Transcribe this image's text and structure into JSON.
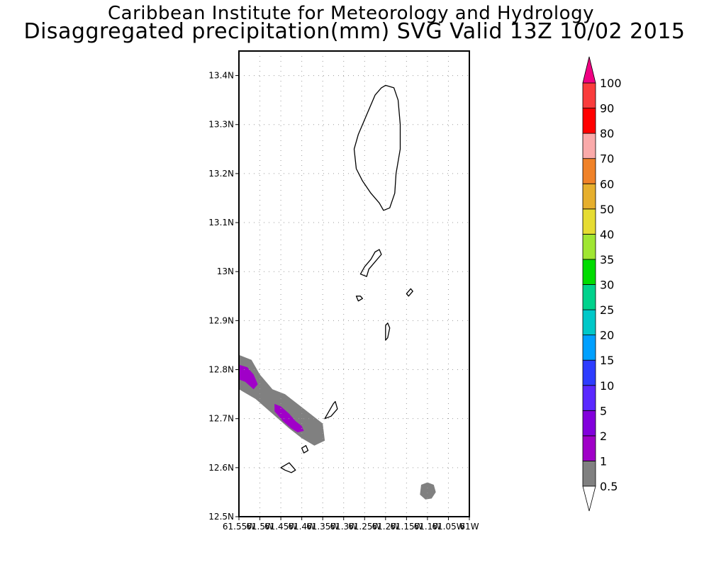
{
  "title": {
    "line1": "Caribbean Institute for Meteorology and Hydrology",
    "line2": "Disaggregated precipitation(mm) SVG Valid 13Z 10/02 2015"
  },
  "map": {
    "lon_range": [
      -61.55,
      -61.0
    ],
    "lat_range": [
      12.5,
      13.45
    ],
    "lat_ticks": [
      {
        "v": 13.4,
        "label": "13.4N"
      },
      {
        "v": 13.3,
        "label": "13.3N"
      },
      {
        "v": 13.2,
        "label": "13.2N"
      },
      {
        "v": 13.1,
        "label": "13.1N"
      },
      {
        "v": 13.0,
        "label": "13N"
      },
      {
        "v": 12.9,
        "label": "12.9N"
      },
      {
        "v": 12.8,
        "label": "12.8N"
      },
      {
        "v": 12.7,
        "label": "12.7N"
      },
      {
        "v": 12.6,
        "label": "12.6N"
      },
      {
        "v": 12.5,
        "label": "12.5N"
      }
    ],
    "lon_ticks": [
      {
        "v": -61.55,
        "label": "61.55W"
      },
      {
        "v": -61.5,
        "label": "61.5W"
      },
      {
        "v": -61.45,
        "label": "61.45W"
      },
      {
        "v": -61.4,
        "label": "61.4W"
      },
      {
        "v": -61.35,
        "label": "61.35W"
      },
      {
        "v": -61.3,
        "label": "61.3W"
      },
      {
        "v": -61.25,
        "label": "61.25W"
      },
      {
        "v": -61.2,
        "label": "61.2W"
      },
      {
        "v": -61.15,
        "label": "61.15W"
      },
      {
        "v": -61.1,
        "label": "61.1W"
      },
      {
        "v": -61.05,
        "label": "61.05W"
      },
      {
        "v": -61.0,
        "label": "61W"
      }
    ],
    "grid": "dotted",
    "precip_areas": [
      {
        "level": "0.5-1",
        "color": "#808080",
        "points": [
          [
            -61.55,
            12.83
          ],
          [
            -61.52,
            12.82
          ],
          [
            -61.5,
            12.79
          ],
          [
            -61.47,
            12.76
          ],
          [
            -61.44,
            12.75
          ],
          [
            -61.41,
            12.73
          ],
          [
            -61.38,
            12.71
          ],
          [
            -61.35,
            12.69
          ],
          [
            -61.345,
            12.655
          ],
          [
            -61.37,
            12.645
          ],
          [
            -61.4,
            12.66
          ],
          [
            -61.43,
            12.68
          ],
          [
            -61.47,
            12.71
          ],
          [
            -61.51,
            12.74
          ],
          [
            -61.55,
            12.76
          ]
        ]
      },
      {
        "level": "0.5-1",
        "color": "#808080",
        "points": [
          [
            -61.115,
            12.565
          ],
          [
            -61.1,
            12.57
          ],
          [
            -61.085,
            12.565
          ],
          [
            -61.08,
            12.55
          ],
          [
            -61.09,
            12.537
          ],
          [
            -61.105,
            12.535
          ],
          [
            -61.118,
            12.545
          ]
        ]
      },
      {
        "level": "1-2",
        "color": "#a000c8",
        "points": [
          [
            -61.55,
            12.81
          ],
          [
            -61.53,
            12.805
          ],
          [
            -61.515,
            12.79
          ],
          [
            -61.505,
            12.77
          ],
          [
            -61.515,
            12.76
          ],
          [
            -61.535,
            12.775
          ],
          [
            -61.55,
            12.78
          ]
        ]
      },
      {
        "level": "1-2",
        "color": "#a000c8",
        "points": [
          [
            -61.465,
            12.73
          ],
          [
            -61.45,
            12.725
          ],
          [
            -61.43,
            12.71
          ],
          [
            -61.415,
            12.695
          ],
          [
            -61.4,
            12.685
          ],
          [
            -61.395,
            12.675
          ],
          [
            -61.41,
            12.672
          ],
          [
            -61.425,
            12.68
          ],
          [
            -61.445,
            12.695
          ],
          [
            -61.465,
            12.715
          ]
        ]
      }
    ],
    "land_areas": [
      {
        "name": "st-vincent",
        "points": [
          [
            -61.2,
            13.38
          ],
          [
            -61.18,
            13.375
          ],
          [
            -61.17,
            13.35
          ],
          [
            -61.165,
            13.3
          ],
          [
            -61.165,
            13.25
          ],
          [
            -61.175,
            13.2
          ],
          [
            -61.178,
            13.16
          ],
          [
            -61.19,
            13.13
          ],
          [
            -61.205,
            13.125
          ],
          [
            -61.215,
            13.14
          ],
          [
            -61.235,
            13.16
          ],
          [
            -61.255,
            13.185
          ],
          [
            -61.27,
            13.21
          ],
          [
            -61.275,
            13.25
          ],
          [
            -61.265,
            13.28
          ],
          [
            -61.245,
            13.32
          ],
          [
            -61.225,
            13.36
          ],
          [
            -61.21,
            13.375
          ]
        ]
      },
      {
        "name": "bequia",
        "points": [
          [
            -61.215,
            13.045
          ],
          [
            -61.21,
            13.035
          ],
          [
            -61.225,
            13.02
          ],
          [
            -61.24,
            13.005
          ],
          [
            -61.245,
            12.99
          ],
          [
            -61.26,
            12.995
          ],
          [
            -61.25,
            13.01
          ],
          [
            -61.235,
            13.025
          ],
          [
            -61.225,
            13.04
          ]
        ]
      },
      {
        "name": "mustique",
        "points": [
          [
            -61.195,
            12.895
          ],
          [
            -61.19,
            12.885
          ],
          [
            -61.195,
            12.865
          ],
          [
            -61.2,
            12.86
          ],
          [
            -61.2,
            12.875
          ],
          [
            -61.2,
            12.89
          ]
        ]
      },
      {
        "name": "carriacou",
        "points": [
          [
            -61.42,
            12.6
          ],
          [
            -61.415,
            12.595
          ],
          [
            -61.425,
            12.59
          ],
          [
            -61.44,
            12.595
          ],
          [
            -61.45,
            12.6
          ],
          [
            -61.44,
            12.605
          ],
          [
            -61.43,
            12.61
          ]
        ]
      },
      {
        "name": "union",
        "points": [
          [
            -61.32,
            12.735
          ],
          [
            -61.315,
            12.72
          ],
          [
            -61.33,
            12.705
          ],
          [
            -61.345,
            12.7
          ],
          [
            -61.335,
            12.715
          ],
          [
            -61.325,
            12.73
          ]
        ]
      },
      {
        "name": "canouan",
        "points": [
          [
            -61.26,
            12.95
          ],
          [
            -61.255,
            12.945
          ],
          [
            -61.265,
            12.94
          ],
          [
            -61.27,
            12.95
          ]
        ]
      },
      {
        "name": "baliceaux",
        "points": [
          [
            -61.14,
            12.965
          ],
          [
            -61.135,
            12.96
          ],
          [
            -61.145,
            12.95
          ],
          [
            -61.15,
            12.955
          ]
        ]
      },
      {
        "name": "mayreau",
        "points": [
          [
            -61.39,
            12.645
          ],
          [
            -61.385,
            12.635
          ],
          [
            -61.395,
            12.63
          ],
          [
            -61.4,
            12.64
          ]
        ]
      }
    ]
  },
  "colorbar": {
    "stops": [
      {
        "label": "0.5",
        "color": "#808080"
      },
      {
        "label": "1",
        "color": "#a000c8"
      },
      {
        "label": "2",
        "color": "#8200dc"
      },
      {
        "label": "5",
        "color": "#5a28ff"
      },
      {
        "label": "10",
        "color": "#2d3cff"
      },
      {
        "label": "15",
        "color": "#00a0ff"
      },
      {
        "label": "20",
        "color": "#00c8c8"
      },
      {
        "label": "25",
        "color": "#00d28c"
      },
      {
        "label": "30",
        "color": "#00dc00"
      },
      {
        "label": "35",
        "color": "#a0e632"
      },
      {
        "label": "40",
        "color": "#e6dc32"
      },
      {
        "label": "50",
        "color": "#e6af2d"
      },
      {
        "label": "60",
        "color": "#f08228"
      },
      {
        "label": "70",
        "color": "#faaaaa"
      },
      {
        "label": "80",
        "color": "#ff0000"
      },
      {
        "label": "90",
        "color": "#fa3c3c"
      },
      {
        "label": "100",
        "color": "#f00082"
      }
    ],
    "under_color": "#ffffff",
    "over_color": "#f00082"
  }
}
